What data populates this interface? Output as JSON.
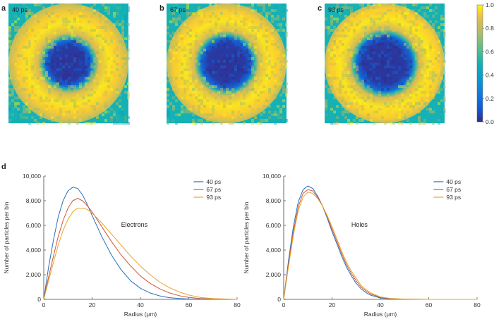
{
  "panels_top": [
    {
      "letter": "a",
      "time": "40 ps",
      "hole_radius": 0.19,
      "ring_radius": 0.42,
      "ring_width": 0.16
    },
    {
      "letter": "b",
      "time": "67 ps",
      "hole_radius": 0.21,
      "ring_radius": 0.44,
      "ring_width": 0.17
    },
    {
      "letter": "c",
      "time": "93 ps",
      "hole_radius": 0.23,
      "ring_radius": 0.46,
      "ring_width": 0.18
    }
  ],
  "colorbar": {
    "min": 0.0,
    "max": 1.0,
    "ticks": [
      "0.0",
      "0.2",
      "0.4",
      "0.6",
      "0.8",
      "1.0"
    ],
    "background_level": 0.5
  },
  "panel_d_label": "d",
  "colors": {
    "40 ps": "#2a6fb8",
    "67 ps": "#d2553a",
    "93 ps": "#e6a62a"
  },
  "chart_data": [
    {
      "type": "line",
      "annotation": "Electrons",
      "xlabel": "Radius (μm)",
      "ylabel": "Number of particles per bin",
      "xlim": [
        0,
        80
      ],
      "ylim": [
        0,
        10000
      ],
      "xticks": [
        "0",
        "20",
        "40",
        "60",
        "80"
      ],
      "yticks": [
        "0",
        "2,000",
        "4,000",
        "6,000",
        "8,000",
        "10,000"
      ],
      "legend_position": "top-right",
      "series": [
        {
          "name": "40 ps",
          "x": [
            0,
            2,
            4,
            6,
            8,
            10,
            12,
            14,
            16,
            18,
            20,
            24,
            28,
            32,
            36,
            40,
            44,
            48,
            52,
            56,
            60,
            65,
            70,
            80
          ],
          "values": [
            0,
            2600,
            4800,
            6700,
            8000,
            8800,
            9100,
            9000,
            8500,
            7700,
            6800,
            5100,
            3600,
            2400,
            1500,
            900,
            520,
            280,
            140,
            70,
            30,
            10,
            0,
            0
          ]
        },
        {
          "name": "67 ps",
          "x": [
            0,
            2,
            4,
            6,
            8,
            10,
            12,
            14,
            16,
            18,
            20,
            24,
            28,
            32,
            36,
            40,
            44,
            48,
            52,
            56,
            60,
            65,
            70,
            80
          ],
          "values": [
            0,
            1800,
            3500,
            5100,
            6400,
            7400,
            8000,
            8200,
            8000,
            7600,
            7100,
            5900,
            4700,
            3600,
            2700,
            1900,
            1300,
            850,
            520,
            300,
            160,
            60,
            20,
            0
          ]
        },
        {
          "name": "93 ps",
          "x": [
            0,
            2,
            4,
            6,
            8,
            10,
            12,
            14,
            16,
            18,
            20,
            24,
            28,
            32,
            36,
            40,
            44,
            48,
            52,
            56,
            60,
            65,
            70,
            80
          ],
          "values": [
            0,
            1500,
            3000,
            4400,
            5600,
            6500,
            7100,
            7400,
            7400,
            7300,
            7000,
            6200,
            5300,
            4400,
            3500,
            2700,
            2000,
            1400,
            950,
            600,
            350,
            150,
            60,
            0
          ]
        }
      ]
    },
    {
      "type": "line",
      "annotation": "Holes",
      "xlabel": "Radius (μm)",
      "ylabel": "Number of particles per bin",
      "xlim": [
        0,
        80
      ],
      "ylim": [
        0,
        10000
      ],
      "xticks": [
        "0",
        "20",
        "40",
        "60",
        "80"
      ],
      "yticks": [
        "0",
        "2,000",
        "4,000",
        "6,000",
        "8,000",
        "10,000"
      ],
      "legend_position": "top-right",
      "series": [
        {
          "name": "40 ps",
          "x": [
            0,
            2,
            4,
            6,
            8,
            10,
            12,
            14,
            16,
            18,
            20,
            22,
            24,
            26,
            28,
            30,
            32,
            34,
            36,
            40,
            44,
            50,
            60,
            80
          ],
          "values": [
            0,
            3200,
            5900,
            7900,
            8900,
            9200,
            9000,
            8400,
            7600,
            6600,
            5500,
            4500,
            3500,
            2600,
            1900,
            1300,
            850,
            550,
            340,
            110,
            40,
            10,
            0,
            0
          ]
        },
        {
          "name": "67 ps",
          "x": [
            0,
            2,
            4,
            6,
            8,
            10,
            12,
            14,
            16,
            18,
            20,
            22,
            24,
            26,
            28,
            30,
            32,
            34,
            36,
            40,
            44,
            50,
            60,
            80
          ],
          "values": [
            0,
            2900,
            5500,
            7500,
            8600,
            8900,
            8800,
            8300,
            7600,
            6700,
            5700,
            4700,
            3700,
            2800,
            2100,
            1500,
            1000,
            680,
            430,
            160,
            60,
            15,
            0,
            0
          ]
        },
        {
          "name": "93 ps",
          "x": [
            0,
            2,
            4,
            6,
            8,
            10,
            12,
            14,
            16,
            18,
            20,
            22,
            24,
            26,
            28,
            30,
            32,
            34,
            36,
            40,
            44,
            50,
            60,
            80
          ],
          "values": [
            0,
            2700,
            5200,
            7200,
            8300,
            8700,
            8600,
            8200,
            7600,
            6800,
            5900,
            4900,
            3900,
            3000,
            2300,
            1700,
            1150,
            790,
            520,
            200,
            80,
            20,
            0,
            0
          ]
        }
      ]
    }
  ]
}
